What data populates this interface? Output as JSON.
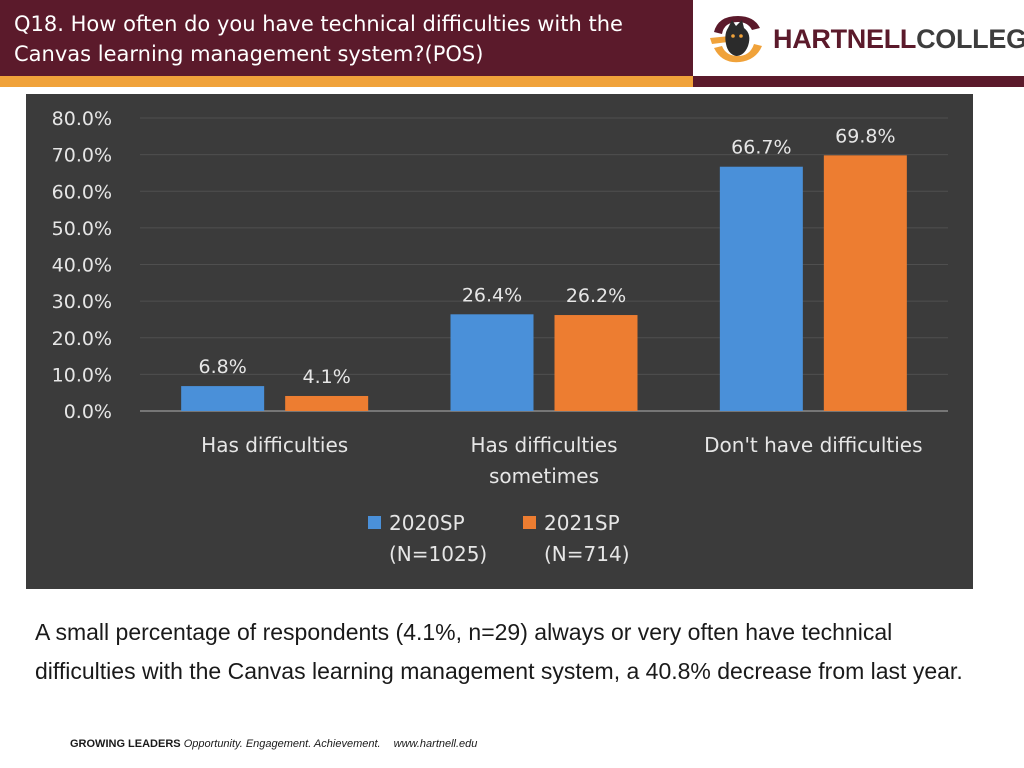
{
  "header": {
    "title": "Q18. How often do you have technical difficulties with the Canvas learning management system?(POS)"
  },
  "logo": {
    "word_part1": "HARTNELL",
    "word_part2": "COLLEGE",
    "icon": "panther-crest-icon"
  },
  "colors": {
    "header_bg": "#5b1a2b",
    "accent": "#f0a23a",
    "chart_bg": "#3b3b3b",
    "series_2020": "#4a90d9",
    "series_2021": "#ed7d31"
  },
  "chart_data": {
    "type": "bar",
    "categories": [
      [
        "Has difficulties"
      ],
      [
        "Has difficulties",
        "sometimes"
      ],
      [
        "Don't have difficulties"
      ]
    ],
    "series": [
      {
        "name": "2020SP",
        "name_line2": "(N=1025)",
        "color": "#4a90d9",
        "values": [
          6.8,
          26.4,
          66.7
        ],
        "labels": [
          "6.8%",
          "26.4%",
          "66.7%"
        ]
      },
      {
        "name": "2021SP",
        "name_line2": "(N=714)",
        "color": "#ed7d31",
        "values": [
          4.1,
          26.2,
          69.8
        ],
        "labels": [
          "4.1%",
          "26.2%",
          "69.8%"
        ]
      }
    ],
    "y_ticks": [
      "0.0%",
      "10.0%",
      "20.0%",
      "30.0%",
      "40.0%",
      "50.0%",
      "60.0%",
      "70.0%",
      "80.0%"
    ],
    "ylim": [
      0,
      80
    ],
    "grid": true,
    "legend_position": "bottom"
  },
  "summary": "A small percentage of respondents (4.1%, n=29) always or very often have technical difficulties with the Canvas learning management system, a 40.8% decrease from last year.",
  "footer": {
    "brand": "GROWING LEADERS",
    "tagline": "Opportunity. Engagement. Achievement.",
    "url": "www.hartnell.edu"
  }
}
